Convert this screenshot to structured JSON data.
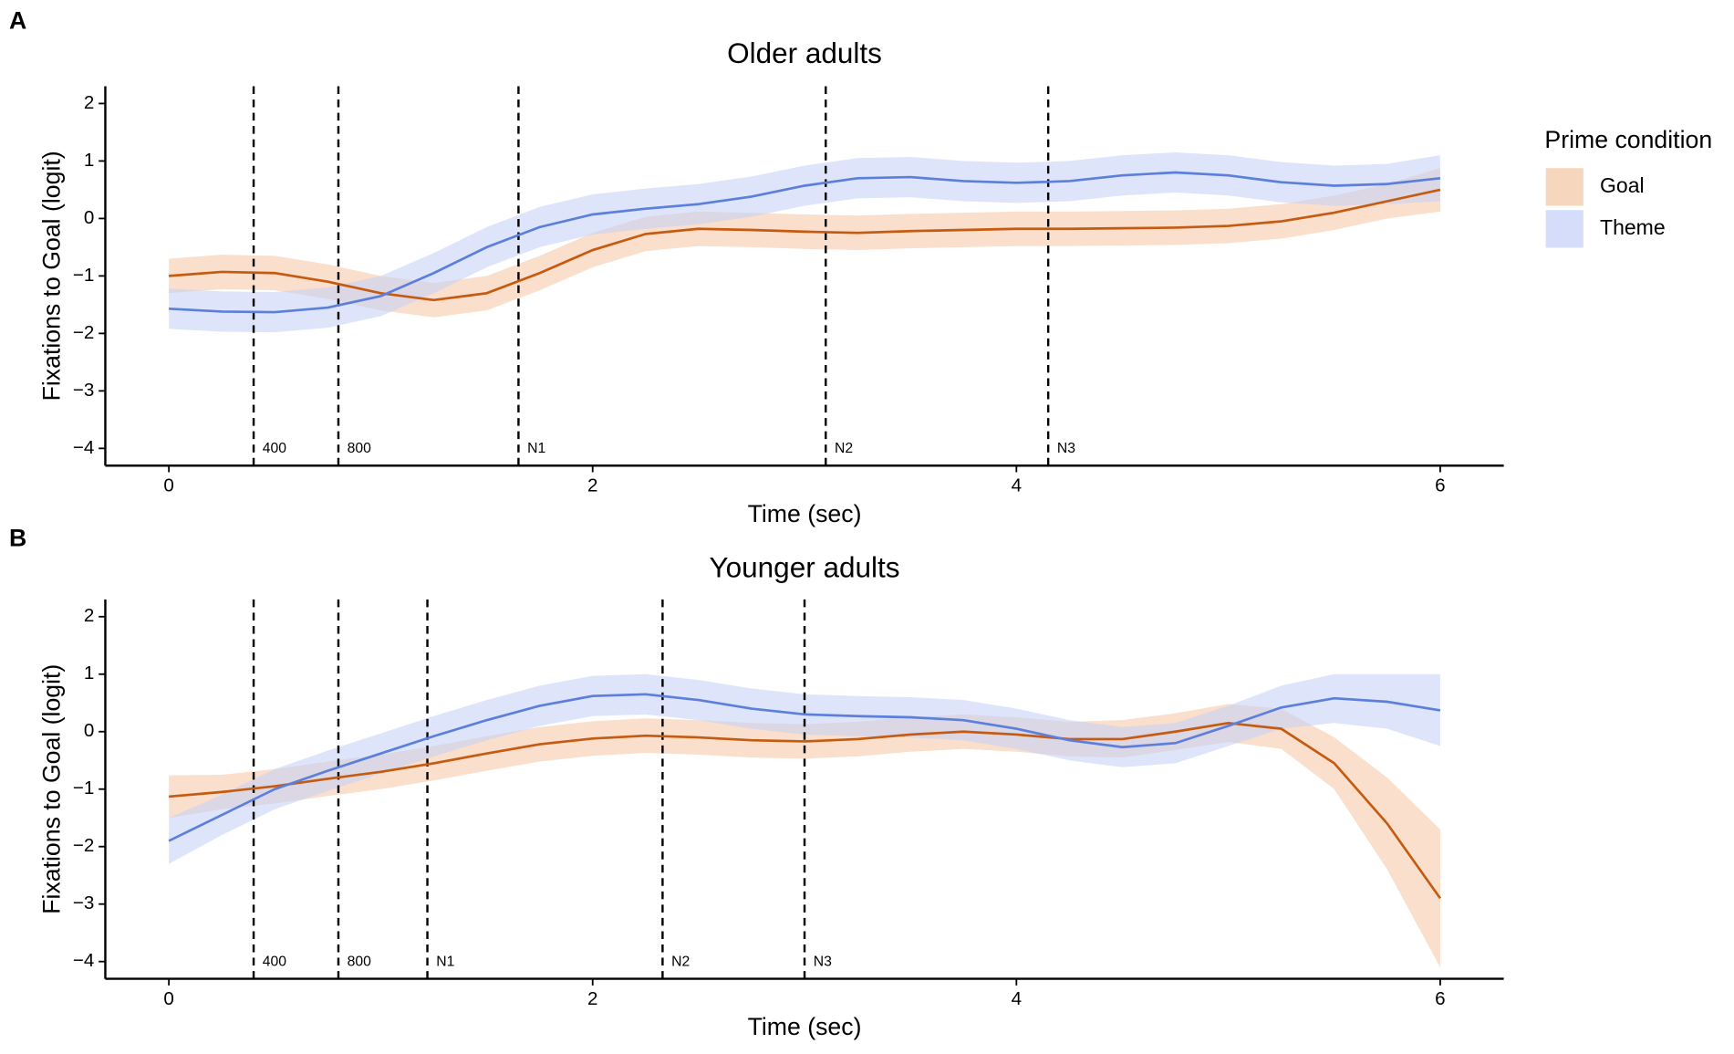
{
  "legend_title": "Prime condition",
  "chart_data": [
    {
      "type": "line",
      "panel_label": "A",
      "title": "Older adults",
      "xlabel": "Time (sec)",
      "ylabel": "Fixations to Goal (logit)",
      "x": [
        0,
        0.25,
        0.5,
        0.75,
        1,
        1.25,
        1.5,
        1.75,
        2,
        2.25,
        2.5,
        2.75,
        3,
        3.25,
        3.5,
        3.75,
        4,
        4.25,
        4.5,
        4.75,
        5,
        5.25,
        5.5,
        5.75,
        6
      ],
      "series": [
        {
          "name": "Goal",
          "color": "#c55a11",
          "ribbon_color": "#f4c4a2",
          "values": [
            -1.0,
            -0.93,
            -0.95,
            -1.1,
            -1.3,
            -1.42,
            -1.3,
            -0.95,
            -0.55,
            -0.27,
            -0.18,
            -0.2,
            -0.23,
            -0.25,
            -0.22,
            -0.2,
            -0.18,
            -0.18,
            -0.17,
            -0.16,
            -0.13,
            -0.05,
            0.1,
            0.3,
            0.5
          ],
          "lower": [
            -1.3,
            -1.23,
            -1.25,
            -1.4,
            -1.6,
            -1.72,
            -1.6,
            -1.25,
            -0.85,
            -0.57,
            -0.48,
            -0.5,
            -0.53,
            -0.55,
            -0.52,
            -0.5,
            -0.48,
            -0.48,
            -0.47,
            -0.46,
            -0.43,
            -0.35,
            -0.2,
            0.0,
            0.12
          ],
          "upper": [
            -0.7,
            -0.63,
            -0.65,
            -0.8,
            -1.0,
            -1.12,
            -1.0,
            -0.65,
            -0.25,
            0.03,
            0.12,
            0.1,
            0.07,
            0.05,
            0.08,
            0.1,
            0.12,
            0.12,
            0.13,
            0.14,
            0.17,
            0.25,
            0.4,
            0.6,
            0.88
          ]
        },
        {
          "name": "Theme",
          "color": "#5b7fdb",
          "ribbon_color": "#c3cff8",
          "values": [
            -1.57,
            -1.62,
            -1.63,
            -1.55,
            -1.35,
            -0.95,
            -0.5,
            -0.15,
            0.07,
            0.17,
            0.25,
            0.38,
            0.57,
            0.7,
            0.72,
            0.65,
            0.62,
            0.65,
            0.75,
            0.8,
            0.75,
            0.63,
            0.57,
            0.6,
            0.7
          ],
          "lower": [
            -1.92,
            -1.97,
            -1.98,
            -1.9,
            -1.7,
            -1.3,
            -0.85,
            -0.5,
            -0.28,
            -0.18,
            -0.1,
            0.03,
            0.22,
            0.35,
            0.37,
            0.3,
            0.27,
            0.3,
            0.4,
            0.45,
            0.4,
            0.28,
            0.22,
            0.25,
            0.3
          ],
          "upper": [
            -1.22,
            -1.27,
            -1.28,
            -1.2,
            -1.0,
            -0.6,
            -0.15,
            0.2,
            0.42,
            0.52,
            0.6,
            0.73,
            0.92,
            1.05,
            1.07,
            1.0,
            0.97,
            1.0,
            1.1,
            1.15,
            1.1,
            0.98,
            0.92,
            0.95,
            1.1
          ]
        }
      ],
      "vlines": [
        {
          "x": 0.4,
          "label": "400"
        },
        {
          "x": 0.8,
          "label": "800"
        },
        {
          "x": 1.65,
          "label": "N1"
        },
        {
          "x": 3.1,
          "label": "N2"
        },
        {
          "x": 4.15,
          "label": "N3"
        }
      ],
      "xlim": [
        -0.3,
        6.3
      ],
      "xticks": [
        0,
        2,
        4,
        6
      ],
      "ylim": [
        -4.3,
        2.3
      ],
      "yticks": [
        {
          "value": -4,
          "label": "−4"
        },
        {
          "value": -3,
          "label": "−3"
        },
        {
          "value": -2,
          "label": "−2"
        },
        {
          "value": -1,
          "label": "−1"
        },
        0,
        1,
        2
      ]
    },
    {
      "type": "line",
      "panel_label": "B",
      "title": "Younger adults",
      "xlabel": "Time (sec)",
      "ylabel": "Fixations to Goal (logit)",
      "x": [
        0,
        0.25,
        0.5,
        0.75,
        1,
        1.25,
        1.5,
        1.75,
        2,
        2.25,
        2.5,
        2.75,
        3,
        3.25,
        3.5,
        3.75,
        4,
        4.25,
        4.5,
        4.75,
        5,
        5.25,
        5.5,
        5.75,
        6
      ],
      "series": [
        {
          "color": "#c55a11",
          "ribbon_color": "#f4c4a2",
          "values": [
            -1.13,
            -1.05,
            -0.95,
            -0.82,
            -0.7,
            -0.55,
            -0.38,
            -0.22,
            -0.12,
            -0.07,
            -0.1,
            -0.15,
            -0.17,
            -0.13,
            -0.05,
            0.0,
            -0.05,
            -0.13,
            -0.13,
            0.0,
            0.15,
            0.05,
            -0.55,
            -1.6,
            -2.9
          ],
          "lower": [
            -1.5,
            -1.35,
            -1.25,
            -1.12,
            -1.0,
            -0.85,
            -0.68,
            -0.52,
            -0.42,
            -0.37,
            -0.4,
            -0.45,
            -0.47,
            -0.43,
            -0.35,
            -0.3,
            -0.35,
            -0.43,
            -0.45,
            -0.32,
            -0.18,
            -0.3,
            -1.0,
            -2.4,
            -4.1
          ],
          "upper": [
            -0.76,
            -0.75,
            -0.65,
            -0.52,
            -0.4,
            -0.25,
            -0.08,
            0.08,
            0.18,
            0.23,
            0.2,
            0.15,
            0.13,
            0.17,
            0.25,
            0.3,
            0.25,
            0.17,
            0.2,
            0.32,
            0.48,
            0.4,
            -0.1,
            -0.8,
            -1.7
          ]
        },
        {
          "color": "#5b7fdb",
          "ribbon_color": "#c3cff8",
          "values": [
            -1.9,
            -1.45,
            -1.0,
            -0.68,
            -0.38,
            -0.08,
            0.2,
            0.45,
            0.62,
            0.65,
            0.55,
            0.4,
            0.3,
            0.27,
            0.25,
            0.2,
            0.05,
            -0.15,
            -0.27,
            -0.2,
            0.1,
            0.42,
            0.58,
            0.52,
            0.37
          ],
          "lower": [
            -2.3,
            -1.8,
            -1.35,
            -1.03,
            -0.73,
            -0.43,
            -0.15,
            0.1,
            0.27,
            0.3,
            0.2,
            0.05,
            -0.05,
            -0.08,
            -0.1,
            -0.15,
            -0.3,
            -0.5,
            -0.62,
            -0.55,
            -0.25,
            0.05,
            0.15,
            0.05,
            -0.25
          ],
          "upper": [
            -1.5,
            -1.1,
            -0.65,
            -0.33,
            -0.03,
            0.27,
            0.55,
            0.8,
            0.97,
            1.0,
            0.9,
            0.75,
            0.65,
            0.62,
            0.6,
            0.55,
            0.4,
            0.2,
            0.08,
            0.15,
            0.45,
            0.8,
            1.0,
            1.0,
            1.0
          ]
        }
      ],
      "vlines": [
        {
          "x": 0.4,
          "label": "400"
        },
        {
          "x": 0.8,
          "label": "800"
        },
        {
          "x": 1.22,
          "label": "N1"
        },
        {
          "x": 2.33,
          "label": "N2"
        },
        {
          "x": 3.0,
          "label": "N3"
        }
      ],
      "xlim": [
        -0.3,
        6.3
      ],
      "xticks": [
        0,
        2,
        4,
        6
      ],
      "ylim": [
        -4.3,
        2.3
      ],
      "yticks": [
        {
          "value": -4,
          "label": "−4"
        },
        {
          "value": -3,
          "label": "−3"
        },
        {
          "value": -2,
          "label": "−2"
        },
        {
          "value": -1,
          "label": "−1"
        },
        0,
        1,
        2
      ]
    }
  ]
}
